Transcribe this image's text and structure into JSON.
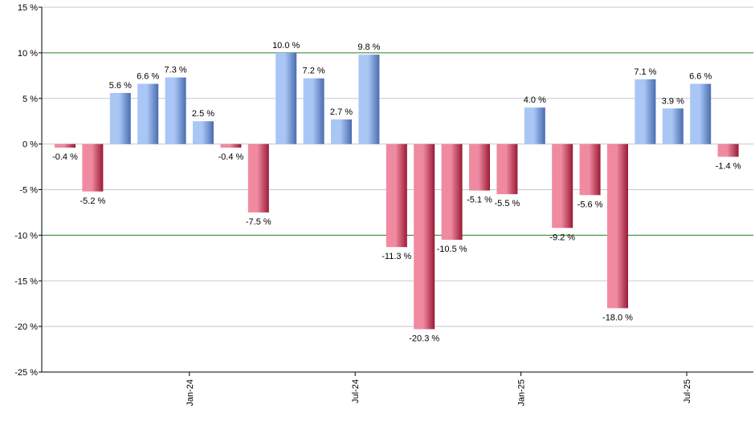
{
  "chart_data": {
    "type": "bar",
    "title": "",
    "xlabel": "",
    "ylabel": "",
    "ylim": [
      -25,
      15
    ],
    "y_ticks": [
      15,
      10,
      5,
      0,
      -5,
      -10,
      -15,
      -20,
      -25
    ],
    "y_tick_labels": [
      "15 %",
      "10 %",
      "5 %",
      "0 %",
      "-5 %",
      "-10 %",
      "-15 %",
      "-20 %",
      "-25 %"
    ],
    "reference_lines": [
      10,
      -10
    ],
    "grid": true,
    "legend": "none",
    "x_tick_labels": [
      {
        "label": "Jan-24",
        "index": 4.5
      },
      {
        "label": "Jul-24",
        "index": 10.5
      },
      {
        "label": "Jan-25",
        "index": 16.5
      },
      {
        "label": "Jul-25",
        "index": 22.5
      }
    ],
    "values": [
      -0.4,
      -5.2,
      5.6,
      6.6,
      7.3,
      2.5,
      -0.4,
      -7.5,
      10.0,
      7.2,
      2.7,
      9.8,
      -11.3,
      -20.3,
      -10.5,
      -5.1,
      -5.5,
      4.0,
      -9.2,
      -5.6,
      -18.0,
      7.1,
      3.9,
      6.6,
      -1.4
    ],
    "value_labels": [
      "-0.4 %",
      "-5.2 %",
      "5.6 %",
      "6.6 %",
      "7.3 %",
      "2.5 %",
      "-0.4 %",
      "-7.5 %",
      "10.0 %",
      "7.2 %",
      "2.7 %",
      "9.8 %",
      "-11.3 %",
      "-20.3 %",
      "-10.5 %",
      "-5.1 %",
      "-5.5 %",
      "4.0 %",
      "-9.2 %",
      "-5.6 %",
      "-18.0 %",
      "7.1 %",
      "3.9 %",
      "6.6 %",
      "-1.4 %"
    ],
    "colors": {
      "positive_light": "#a9c6f5",
      "positive_dark": "#4a6db0",
      "negative_light": "#f08aa0",
      "negative_dark": "#9b1a38",
      "reference_line": "#2e8b2e",
      "grid": "#c8c8c8",
      "axis": "#000000"
    }
  }
}
